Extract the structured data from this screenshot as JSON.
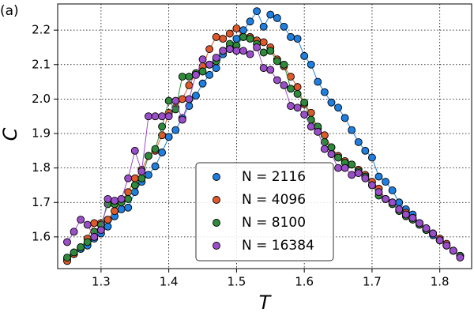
{
  "chart_data": {
    "type": "line",
    "panel_label": "(a)",
    "xlabel": "T",
    "ylabel": "C",
    "x": [
      1.25,
      1.26,
      1.27,
      1.28,
      1.29,
      1.3,
      1.31,
      1.32,
      1.33,
      1.34,
      1.35,
      1.36,
      1.37,
      1.38,
      1.39,
      1.4,
      1.41,
      1.42,
      1.43,
      1.44,
      1.45,
      1.46,
      1.47,
      1.48,
      1.49,
      1.5,
      1.51,
      1.52,
      1.53,
      1.54,
      1.55,
      1.56,
      1.57,
      1.58,
      1.59,
      1.6,
      1.61,
      1.62,
      1.63,
      1.64,
      1.65,
      1.66,
      1.67,
      1.68,
      1.69,
      1.7,
      1.71,
      1.72,
      1.73,
      1.74,
      1.75,
      1.76,
      1.77,
      1.78,
      1.79,
      1.8,
      1.81,
      1.82,
      1.83
    ],
    "series": [
      {
        "name": "N = 2116",
        "color": "#1e7fe0",
        "values": [
          1.535,
          1.55,
          1.565,
          1.575,
          1.595,
          1.61,
          1.63,
          1.66,
          1.68,
          1.685,
          1.73,
          1.76,
          1.78,
          1.805,
          1.845,
          1.89,
          1.91,
          1.945,
          1.98,
          2.01,
          2.045,
          2.07,
          2.09,
          2.13,
          2.15,
          2.175,
          2.2,
          2.225,
          2.255,
          2.21,
          2.245,
          2.235,
          2.21,
          2.18,
          2.175,
          2.125,
          2.1,
          2.05,
          2.02,
          1.99,
          1.975,
          1.945,
          1.91,
          1.875,
          1.85,
          1.83,
          1.775,
          1.76,
          1.735,
          1.7,
          1.68,
          1.665,
          1.64,
          1.62,
          1.605,
          1.59,
          1.575,
          1.56,
          1.545
        ]
      },
      {
        "name": "N = 4096",
        "color": "#de5a2b",
        "values": [
          1.53,
          1.55,
          1.57,
          1.595,
          1.64,
          1.64,
          1.65,
          1.675,
          1.705,
          1.73,
          1.77,
          1.795,
          1.835,
          1.85,
          1.895,
          1.96,
          1.975,
          2.0,
          2.04,
          2.075,
          2.095,
          2.145,
          2.18,
          2.175,
          2.19,
          2.205,
          2.18,
          2.18,
          2.17,
          2.165,
          2.15,
          2.115,
          2.095,
          2.065,
          2.035,
          1.985,
          1.96,
          1.915,
          1.895,
          1.86,
          1.835,
          1.82,
          1.81,
          1.795,
          1.78,
          1.76,
          1.74,
          1.71,
          1.7,
          1.68,
          1.67,
          1.655,
          1.64,
          1.625,
          1.61,
          1.595,
          1.58,
          1.56,
          1.545
        ]
      },
      {
        "name": "N = 8100",
        "color": "#2f8a3c",
        "values": [
          1.54,
          1.555,
          1.57,
          1.585,
          1.615,
          1.635,
          1.695,
          1.695,
          1.7,
          1.71,
          1.75,
          1.77,
          1.835,
          1.855,
          1.92,
          1.995,
          1.97,
          2.065,
          2.065,
          2.075,
          2.08,
          2.1,
          2.11,
          2.14,
          2.16,
          2.155,
          2.18,
          2.175,
          2.16,
          2.135,
          2.14,
          2.11,
          2.1,
          2.03,
          2.015,
          1.99,
          1.94,
          1.92,
          1.875,
          1.86,
          1.83,
          1.815,
          1.81,
          1.79,
          1.775,
          1.75,
          1.72,
          1.71,
          1.695,
          1.675,
          1.66,
          1.65,
          1.635,
          1.62,
          1.61,
          1.59,
          1.575,
          1.56,
          1.545
        ]
      },
      {
        "name": "N = 16384",
        "color": "#9a4fc8",
        "values": [
          1.585,
          1.615,
          1.65,
          1.635,
          1.6,
          1.62,
          1.71,
          1.705,
          1.71,
          1.77,
          1.85,
          1.79,
          1.95,
          1.95,
          1.95,
          1.95,
          1.995,
          1.94,
          2.0,
          2.07,
          2.115,
          2.1,
          2.12,
          2.14,
          2.145,
          2.14,
          2.14,
          2.13,
          2.15,
          2.09,
          2.085,
          2.055,
          2.04,
          1.98,
          1.975,
          1.955,
          1.92,
          1.905,
          1.855,
          1.84,
          1.8,
          1.8,
          1.78,
          1.785,
          1.77,
          1.75,
          1.73,
          1.71,
          1.7,
          1.68,
          1.665,
          1.655,
          1.64,
          1.625,
          1.61,
          1.59,
          1.575,
          1.56,
          1.54
        ]
      }
    ],
    "xlim": [
      1.236,
      1.847
    ],
    "ylim": [
      1.508,
      2.276
    ],
    "xticks": [
      1.3,
      1.4,
      1.5,
      1.6,
      1.7,
      1.8
    ],
    "yticks": [
      1.6,
      1.7,
      1.8,
      1.9,
      {
        "value": 2,
        "label": "2.0"
      },
      2.1,
      2.2
    ],
    "grid": true,
    "legend": "lower center"
  }
}
